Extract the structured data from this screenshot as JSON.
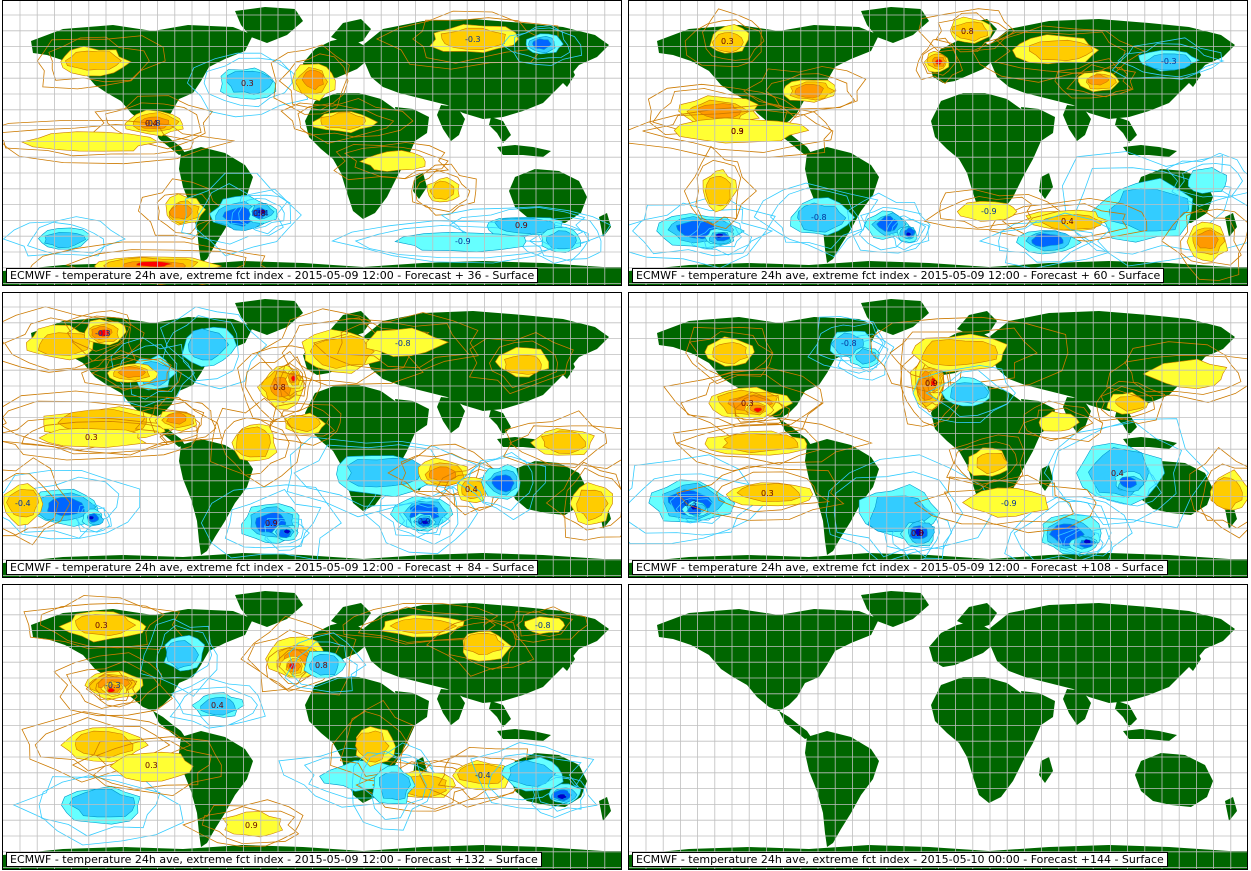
{
  "panels": [
    {
      "caption": "ECMWF - temperature 24h ave, extreme fct index - 2015-05-09 12:00 - Forecast + 36 - Surface",
      "has_data": true,
      "labels": [
        "-0.8",
        "0.8",
        "0.3",
        "-0.3",
        "0.9",
        "-0.9",
        "0.4",
        "-0.4"
      ]
    },
    {
      "caption": "ECMWF - temperature 24h ave, extreme fct index - 2015-05-09 12:00 - Forecast + 60 - Surface",
      "has_data": true,
      "labels": [
        "0.9",
        "-0.8",
        "0.3",
        "0.8",
        "-0.3",
        "0.4",
        "-0.9",
        "0.3"
      ]
    },
    {
      "caption": "ECMWF - temperature 24h ave, extreme fct index - 2015-05-09 12:00 - Forecast + 84 - Surface",
      "has_data": true,
      "labels": [
        "-0.3",
        "0.8",
        "-0.8",
        "0.3",
        "0.9",
        "-0.9",
        "0.4",
        "-0.4"
      ]
    },
    {
      "caption": "ECMWF - temperature 24h ave, extreme fct index - 2015-05-09 12:00 - Forecast +108 - Surface",
      "has_data": true,
      "labels": [
        "-0.8",
        "0.9",
        "0.3",
        "-0.3",
        "0.8",
        "0.4",
        "-0.9",
        "0.3"
      ]
    },
    {
      "caption": "ECMWF - temperature 24h ave, extreme fct index - 2015-05-09 12:00 - Forecast +132 - Surface",
      "has_data": true,
      "labels": [
        "-0.3",
        "0.4",
        "0.8",
        "-0.8",
        "0.3",
        "-0.4",
        "0.9",
        "0.3"
      ]
    },
    {
      "caption": "ECMWF - temperature 24h ave, extreme fct index - 2015-05-10 00:00 - Forecast +144 - Surface",
      "has_data": false,
      "labels": []
    }
  ],
  "colors": {
    "land": "#006600",
    "grid": "#bfbfbf",
    "warm_light": "#ffff33",
    "warm_mid": "#ffcc00",
    "warm_high": "#ff9900",
    "warm_extreme": "#ff0000",
    "warm_contour": "#cc7a00",
    "cold_light": "#66ffff",
    "cold_mid": "#33ccff",
    "cold_high": "#0066ff",
    "cold_extreme": "#0000cc",
    "cold_contour": "#33ccff"
  }
}
